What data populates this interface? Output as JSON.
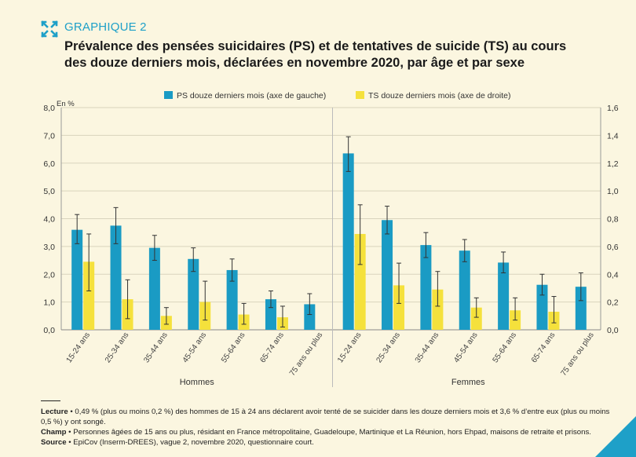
{
  "header": {
    "label": "GRAPHIQUE 2",
    "title": "Prévalence des pensées suicidaires (PS) et de tentatives de suicide (TS) au cours des douze derniers mois, déclarées en novembre 2020, par âge et par sexe"
  },
  "colors": {
    "ps": "#1a9bc4",
    "ts": "#f5e13c",
    "accent": "#1ea0c8"
  },
  "chart_data": {
    "type": "bar",
    "y_unit_label": "En %",
    "ylim_left": [
      0,
      8
    ],
    "ylim_right": [
      0,
      1.6
    ],
    "y_ticks_left": [
      "0,0",
      "1,0",
      "2,0",
      "3,0",
      "4,0",
      "5,0",
      "6,0",
      "7,0",
      "8,0"
    ],
    "y_ticks_right": [
      "0,0",
      "0,2",
      "0,4",
      "0,6",
      "0,8",
      "1,0",
      "1,2",
      "1,4",
      "1,6"
    ],
    "grid": true,
    "legend_position": "top",
    "categories": [
      "15-24 ans",
      "25-34 ans",
      "35-44 ans",
      "45-54 ans",
      "55-64 ans",
      "65-74 ans",
      "75 ans ou plus"
    ],
    "groups": [
      "Hommes",
      "Femmes"
    ],
    "series": [
      {
        "name": "PS douze derniers mois (axe de gauche)",
        "axis": "left",
        "color": "#1a9bc4",
        "values": {
          "Hommes": [
            3.6,
            3.75,
            2.95,
            2.55,
            2.15,
            1.1,
            0.92
          ],
          "Femmes": [
            6.35,
            3.95,
            3.05,
            2.85,
            2.42,
            1.62,
            1.55
          ]
        },
        "error_low": {
          "Hommes": [
            3.1,
            3.1,
            2.5,
            2.1,
            1.75,
            0.8,
            0.55
          ],
          "Femmes": [
            5.7,
            3.45,
            2.6,
            2.45,
            2.05,
            1.25,
            1.05
          ]
        },
        "error_high": {
          "Hommes": [
            4.15,
            4.4,
            3.4,
            2.95,
            2.55,
            1.4,
            1.3
          ],
          "Femmes": [
            6.95,
            4.45,
            3.5,
            3.25,
            2.8,
            2.0,
            2.05
          ]
        }
      },
      {
        "name": "TS douze derniers mois (axe de droite)",
        "axis": "right",
        "color": "#f5e13c",
        "values": {
          "Hommes": [
            0.49,
            0.22,
            0.1,
            0.2,
            0.11,
            0.09,
            null
          ],
          "Femmes": [
            0.69,
            0.32,
            0.29,
            0.16,
            0.14,
            0.13,
            null
          ]
        },
        "error_low": {
          "Hommes": [
            0.28,
            0.08,
            0.04,
            0.07,
            0.04,
            0.02,
            null
          ],
          "Femmes": [
            0.47,
            0.19,
            0.17,
            0.09,
            0.07,
            0.05,
            null
          ]
        },
        "error_high": {
          "Hommes": [
            0.69,
            0.36,
            0.16,
            0.35,
            0.19,
            0.17,
            null
          ],
          "Femmes": [
            0.9,
            0.48,
            0.42,
            0.23,
            0.23,
            0.24,
            null
          ]
        }
      }
    ]
  },
  "notes": {
    "lecture_label": "Lecture",
    "lecture_text": "0,49 % (plus ou moins 0,2 %) des hommes de 15 à 24 ans déclarent avoir tenté de se suicider dans les douze derniers mois et 3,6 % d’entre eux (plus ou moins 0,5 %) y ont songé.",
    "champ_label": "Champ",
    "champ_text": "Personnes âgées de 15 ans ou plus, résidant en France métropolitaine, Guadeloupe, Martinique et La Réunion, hors Ehpad, maisons de retraite et prisons.",
    "source_label": "Source",
    "source_text": "EpiCov (Inserm-DREES), vague 2, novembre 2020, questionnaire court."
  }
}
